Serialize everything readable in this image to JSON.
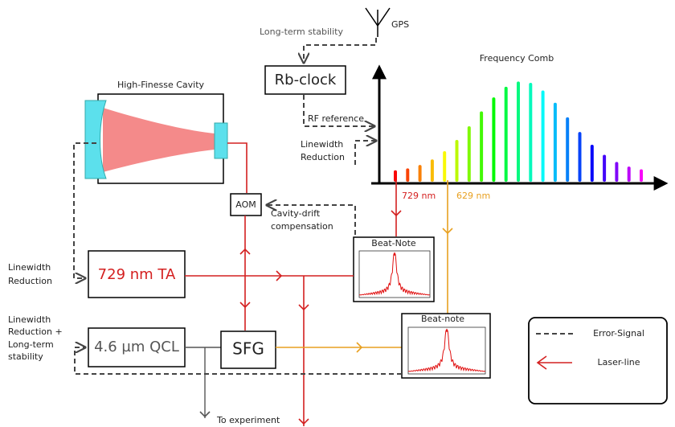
{
  "gps": "GPS",
  "long_term_stability": "Long-term stability",
  "rb_clock": "Rb-clock",
  "frequency_comb": "Frequency Comb",
  "cavity": "High-Finesse Cavity",
  "rf_reference": "RF reference",
  "comb_linewidth_reduction": [
    "Linewidth",
    "Reduction"
  ],
  "aom": "AOM",
  "cavity_drift": [
    "Cavity-drift",
    "compensation"
  ],
  "label_729": "729 nm",
  "label_629": "629 nm",
  "beat_note_1": "Beat-Note",
  "beat_note_2": "Beat-note",
  "ta_linewidth_reduction": [
    "Linewidth",
    "Reduction"
  ],
  "ta": "729 nm TA",
  "qcl_linewidth_reduction": [
    "Linewidth",
    "Reduction +",
    "Long-term",
    "stability"
  ],
  "qcl": "4.6 µm QCL",
  "sfg": "SFG",
  "to_experiment": "To experiment",
  "legend": {
    "error_signal": "Error-Signal",
    "laser_line": "Laser-line"
  }
}
